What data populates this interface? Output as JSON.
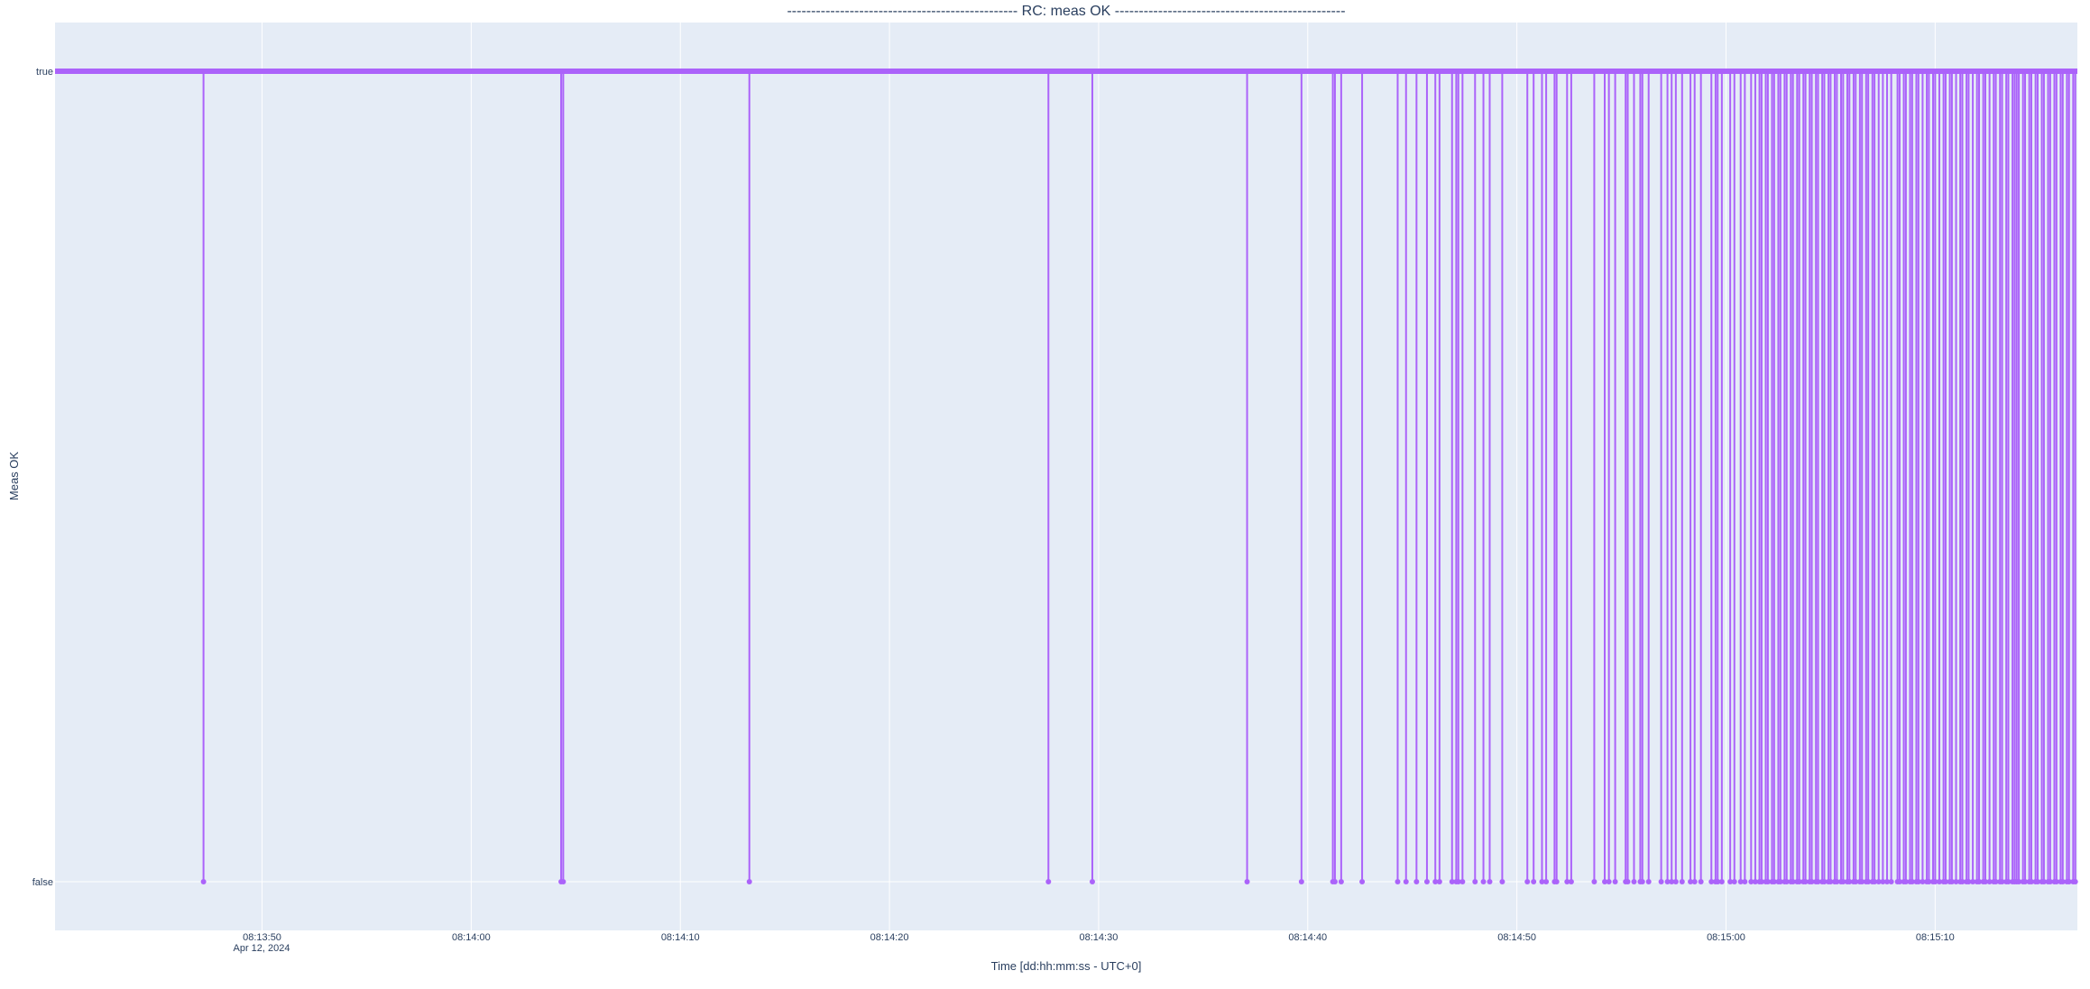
{
  "chart_data": {
    "type": "line",
    "title": "------------------------------------------------  RC: meas OK  ------------------------------------------------",
    "xlabel": "Time [dd:hh:mm:ss - UTC+0]",
    "ylabel": "Meas OK",
    "date_label": "Apr 12, 2024",
    "x_range": [
      "08:13:40.1",
      "08:15:16.8"
    ],
    "x_ticks": [
      "08:13:50",
      "08:14:00",
      "08:14:10",
      "08:14:20",
      "08:14:30",
      "08:14:40",
      "08:14:50",
      "08:15:00",
      "08:15:10"
    ],
    "y_categories": [
      "false",
      "true"
    ],
    "grid": true,
    "default_value": "true",
    "colors": {
      "series": "#ab63fa",
      "plot_bg": "#e5ecf6",
      "grid": "#ffffff",
      "text": "#2a3f5f"
    },
    "false_times": [
      "08:13:47.2",
      "08:14:04.3",
      "08:14:04.4",
      "08:14:13.3",
      "08:14:27.6",
      "08:14:29.7",
      "08:14:37.1",
      "08:14:39.7",
      "08:14:41.2",
      "08:14:41.3",
      "08:14:41.6",
      "08:14:42.6",
      "08:14:44.3",
      "08:14:44.7",
      "08:14:45.2",
      "08:14:45.7",
      "08:14:46.1",
      "08:14:46.3",
      "08:14:46.9",
      "08:14:47.1",
      "08:14:47.2",
      "08:14:47.4",
      "08:14:48.0",
      "08:14:48.4",
      "08:14:48.7",
      "08:14:49.3",
      "08:14:50.5",
      "08:14:50.8",
      "08:14:51.2",
      "08:14:51.4",
      "08:14:51.8",
      "08:14:51.9",
      "08:14:52.4",
      "08:14:52.6",
      "08:14:53.7",
      "08:14:54.2",
      "08:14:54.4",
      "08:14:54.7",
      "08:14:55.2",
      "08:14:55.3",
      "08:14:55.6",
      "08:14:55.9",
      "08:14:56.0",
      "08:14:56.3",
      "08:14:56.9",
      "08:14:57.2",
      "08:14:57.4",
      "08:14:57.6",
      "08:14:57.9",
      "08:14:58.3",
      "08:14:58.5",
      "08:14:58.8",
      "08:14:59.3",
      "08:14:59.5",
      "08:14:59.6",
      "08:14:59.8",
      "08:15:00.2",
      "08:15:00.4",
      "08:15:00.7",
      "08:15:00.9",
      "08:15:01.2",
      "08:15:01.4",
      "08:15:01.6",
      "08:15:01.7",
      "08:15:01.9",
      "08:15:02.0",
      "08:15:02.2",
      "08:15:02.3",
      "08:15:02.5",
      "08:15:02.6",
      "08:15:02.8",
      "08:15:02.9",
      "08:15:03.1",
      "08:15:03.2",
      "08:15:03.4",
      "08:15:03.5",
      "08:15:03.7",
      "08:15:03.8",
      "08:15:04.0",
      "08:15:04.1",
      "08:15:04.3",
      "08:15:04.4",
      "08:15:04.6",
      "08:15:04.7",
      "08:15:04.9",
      "08:15:05.0",
      "08:15:05.2",
      "08:15:05.3",
      "08:15:05.5",
      "08:15:05.6",
      "08:15:05.8",
      "08:15:05.9",
      "08:15:06.1",
      "08:15:06.2",
      "08:15:06.4",
      "08:15:06.5",
      "08:15:06.7",
      "08:15:06.8",
      "08:15:07.0",
      "08:15:07.1",
      "08:15:07.3",
      "08:15:07.5",
      "08:15:07.7",
      "08:15:07.9",
      "08:15:08.2",
      "08:15:08.3",
      "08:15:08.5",
      "08:15:08.6",
      "08:15:08.8",
      "08:15:08.9",
      "08:15:09.1",
      "08:15:09.2",
      "08:15:09.4",
      "08:15:09.6",
      "08:15:09.7",
      "08:15:09.9",
      "08:15:10.0",
      "08:15:10.2",
      "08:15:10.4",
      "08:15:10.5",
      "08:15:10.7",
      "08:15:10.8",
      "08:15:11.0",
      "08:15:11.2",
      "08:15:11.3",
      "08:15:11.5",
      "08:15:11.6",
      "08:15:11.8",
      "08:15:12.0",
      "08:15:12.1",
      "08:15:12.3",
      "08:15:12.4",
      "08:15:12.6",
      "08:15:12.8",
      "08:15:12.9",
      "08:15:13.1",
      "08:15:13.2",
      "08:15:13.4",
      "08:15:13.5",
      "08:15:13.7",
      "08:15:13.8",
      "08:15:13.9",
      "08:15:14.0",
      "08:15:14.2",
      "08:15:14.3",
      "08:15:14.5",
      "08:15:14.6",
      "08:15:14.8",
      "08:15:14.9",
      "08:15:15.1",
      "08:15:15.2",
      "08:15:15.4",
      "08:15:15.5",
      "08:15:15.7",
      "08:15:15.8",
      "08:15:16.0",
      "08:15:16.1",
      "08:15:16.3",
      "08:15:16.4",
      "08:15:16.6",
      "08:15:16.7"
    ]
  }
}
